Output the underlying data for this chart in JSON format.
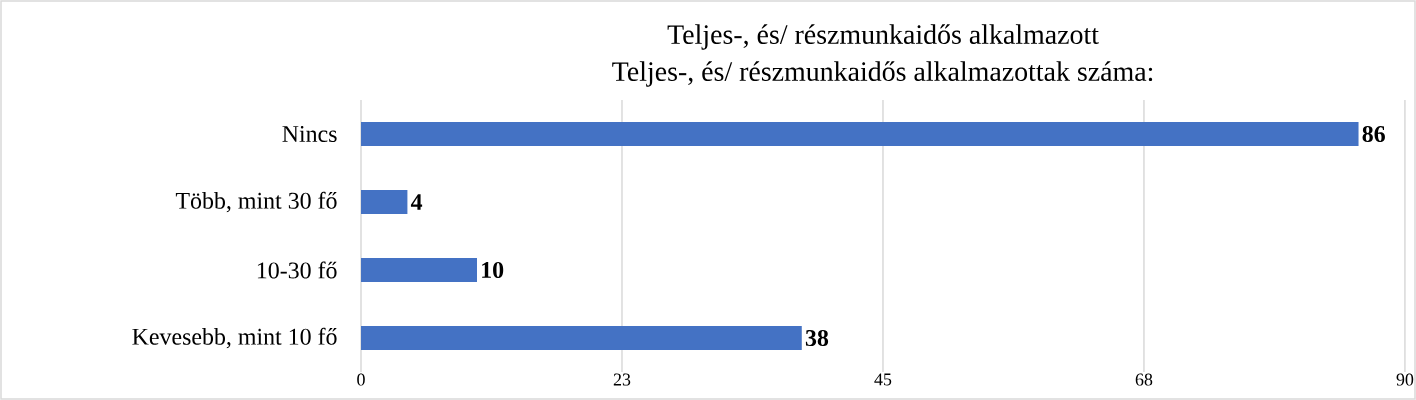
{
  "chart_data": {
    "type": "bar",
    "orientation": "horizontal",
    "title": "Teljes-, és/ részmunkaidős alkalmazott",
    "subtitle": "Teljes-, és/ részmunkaidős alkalmazottak száma:",
    "categories": [
      "Nincs",
      "Több, mint 30 fő",
      "10-30 fő",
      "Kevesebb, mint 10 fő"
    ],
    "values": [
      86,
      4,
      10,
      38
    ],
    "color": "#4472c4",
    "data_labels": true,
    "xlim": [
      0,
      90
    ],
    "xticks": [
      0,
      {
        "value": 22.5,
        "label": "23"
      },
      45,
      {
        "value": 67.5,
        "label": "68"
      },
      90
    ],
    "grid": "x"
  }
}
